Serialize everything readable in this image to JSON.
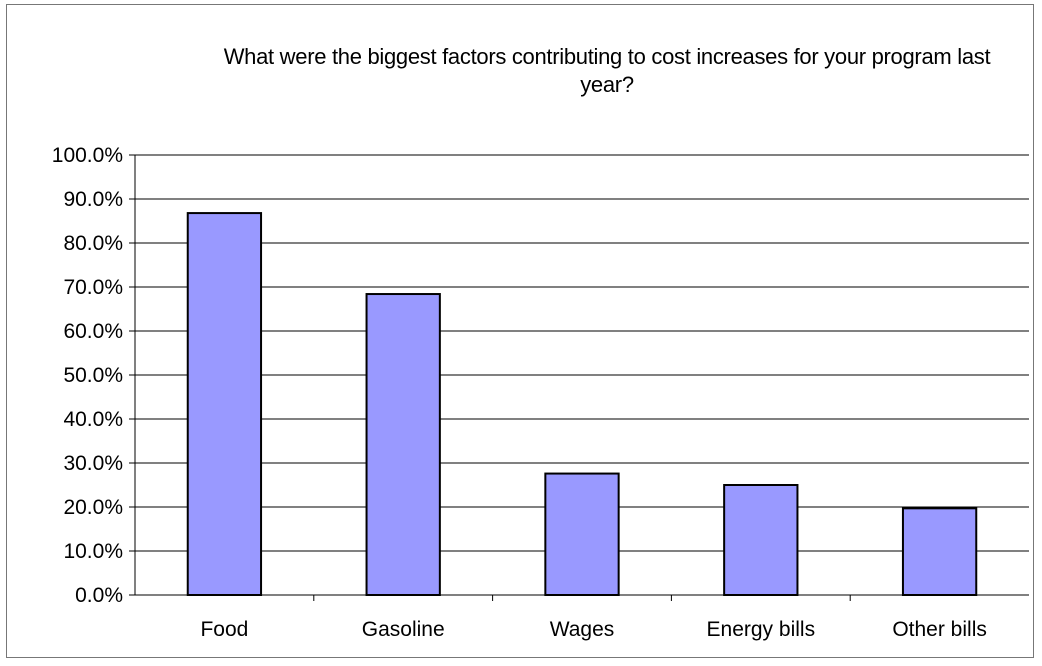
{
  "chart_data": {
    "type": "bar",
    "title": "What were the biggest factors contributing to cost increases for your program last year?",
    "categories": [
      "Food",
      "Gasoline",
      "Wages",
      "Energy bills",
      "Other bills"
    ],
    "values": [
      86.8,
      68.4,
      27.6,
      25.0,
      19.7
    ],
    "ylim": [
      0,
      100
    ],
    "yticks": [
      "0.0%",
      "10.0%",
      "20.0%",
      "30.0%",
      "40.0%",
      "50.0%",
      "60.0%",
      "70.0%",
      "80.0%",
      "90.0%",
      "100.0%"
    ],
    "grid": true,
    "bar_color": "#9999ff",
    "xlabel": "",
    "ylabel": ""
  }
}
